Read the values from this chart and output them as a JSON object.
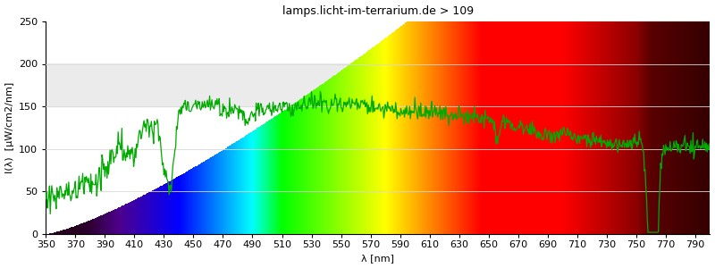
{
  "title": "lamps.licht-im-terrarium.de > 109",
  "xlabel": "λ [nm]",
  "ylabel": "I(λ)  [μW/cm2/nm]",
  "xlim": [
    350,
    800
  ],
  "ylim": [
    0,
    250
  ],
  "yticks": [
    0,
    50,
    100,
    150,
    200,
    250
  ],
  "xticks": [
    350,
    370,
    390,
    410,
    430,
    450,
    470,
    490,
    510,
    530,
    550,
    570,
    590,
    610,
    630,
    650,
    670,
    690,
    710,
    730,
    750,
    770,
    790
  ],
  "line_color": "#00aa00",
  "line_width": 0.9,
  "background_color": "#ffffff",
  "title_fontsize": 9,
  "axis_fontsize": 8,
  "tick_fontsize": 8,
  "wedge_start_nm": 350,
  "wedge_full_nm": 595,
  "ymax_data": 250,
  "gray_band_color": "#ebebeb",
  "grid_color": "#d8d8d8"
}
